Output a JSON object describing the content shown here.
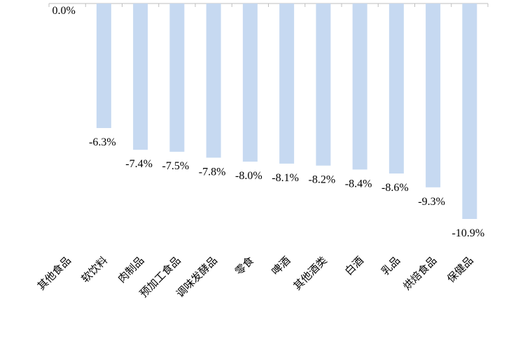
{
  "chart_data": {
    "type": "bar",
    "title": "",
    "xlabel": "",
    "ylabel": "",
    "categories": [
      "其他食品",
      "软饮料",
      "肉制品",
      "预加工食品",
      "调味发酵品",
      "零食",
      "啤酒",
      "其他酒类",
      "白酒",
      "乳品",
      "烘焙食品",
      "保健品"
    ],
    "values": [
      0.0,
      -6.3,
      -7.4,
      -7.5,
      -7.8,
      -8.0,
      -8.1,
      -8.2,
      -8.4,
      -8.6,
      -9.3,
      -10.9
    ],
    "data_labels": [
      "0.0%",
      "-6.3%",
      "-7.4%",
      "-7.5%",
      "-7.8%",
      "-8.0%",
      "-8.1%",
      "-8.2%",
      "-8.4%",
      "-8.6%",
      "-9.3%",
      "-10.9%"
    ],
    "unit": "%",
    "ylim": [
      -12,
      0
    ],
    "grid": false,
    "legend": "none",
    "colors": {
      "bar": "#c6d9f1",
      "axis": "#bfbfbf"
    }
  }
}
